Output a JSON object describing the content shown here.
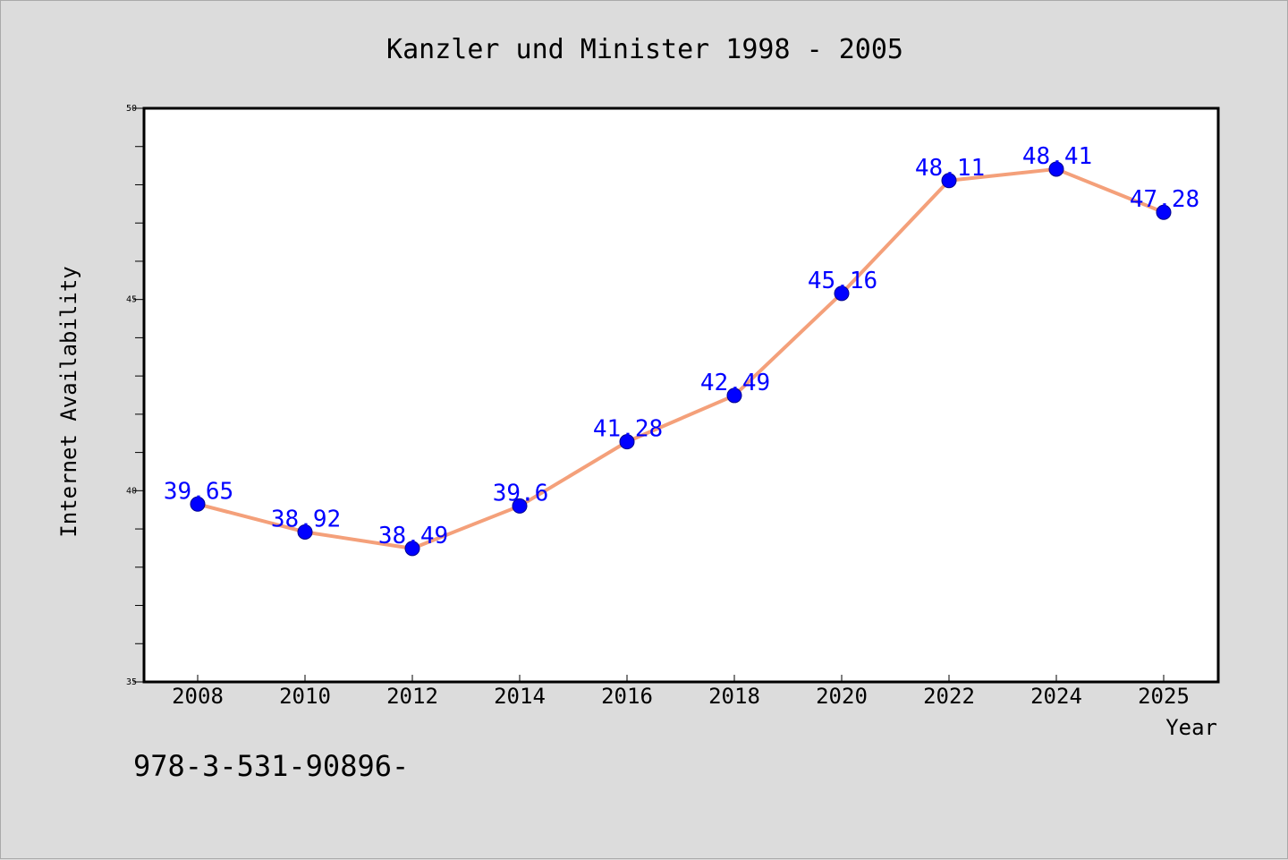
{
  "chart_data": {
    "type": "line",
    "title": "Kanzler und Minister 1998 - 2005",
    "xlabel": "Year",
    "ylabel": "Internet Availability",
    "categories": [
      "2008",
      "2010",
      "2012",
      "2014",
      "2016",
      "2018",
      "2020",
      "2022",
      "2024",
      "2025"
    ],
    "series": [
      {
        "values": [
          39.65,
          38.92,
          38.49,
          39.6,
          41.28,
          42.49,
          45.16,
          48.11,
          48.41,
          47.28
        ],
        "labels": [
          "39.65",
          "38.92",
          "38.49",
          "39.6",
          "41.28",
          "42.49",
          "45.16",
          "48.11",
          "48.41",
          "47.28"
        ]
      }
    ],
    "ylim": [
      35,
      50
    ],
    "yticks": [
      "35",
      "40",
      "45",
      "50"
    ],
    "grid": false,
    "legend": "none",
    "colors": {
      "line": "#f4a07a",
      "marker": "#0000ff",
      "data_label": "#0000ff",
      "background": "#dcdcdc",
      "plot_background": "#ffffff"
    }
  },
  "footnote": "978-3-531-90896-"
}
